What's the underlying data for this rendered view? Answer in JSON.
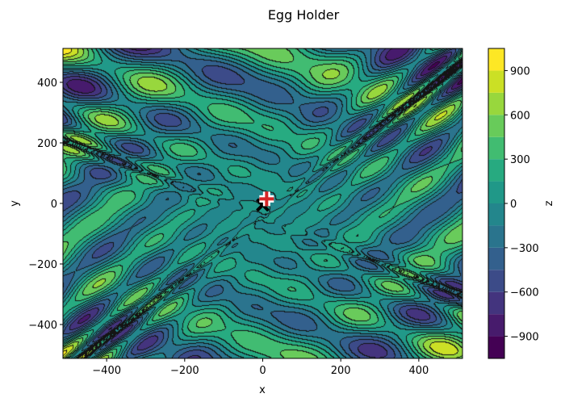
{
  "chart_data": {
    "type": "contour",
    "title": "Egg Holder",
    "xlabel": "x",
    "ylabel": "y",
    "colorbar_label": "z",
    "xlim": [
      -512,
      512
    ],
    "ylim": [
      -512,
      512
    ],
    "zlim": [
      -1050,
      1050
    ],
    "x_ticks": [
      -400,
      -200,
      0,
      200,
      400
    ],
    "y_ticks": [
      -400,
      -200,
      0,
      200,
      400
    ],
    "x_tick_labels": [
      "−400",
      "−200",
      "0",
      "200",
      "400"
    ],
    "y_tick_labels": [
      "−400",
      "−200",
      "0",
      "200",
      "400"
    ],
    "colorbar_ticks": [
      -900,
      -600,
      -300,
      0,
      300,
      600,
      900
    ],
    "colorbar_tick_labels": [
      "−900",
      "−600",
      "−300",
      "0",
      "300",
      "600",
      "900"
    ],
    "levels": [
      -1050,
      -900,
      -750,
      -600,
      -450,
      -300,
      -150,
      0,
      150,
      300,
      450,
      600,
      750,
      900,
      1050
    ],
    "colormap": "viridis",
    "function": "-(y+47)*sin(sqrt(|x/2+(y+47)|)) - x*sin(sqrt(|x-(y+47)|))",
    "markers": [
      {
        "shape": "plus",
        "color": "#d62728",
        "x": 10,
        "y": 15
      },
      {
        "shape": "x",
        "color": "#000000",
        "x": 0,
        "y": -5
      }
    ]
  }
}
